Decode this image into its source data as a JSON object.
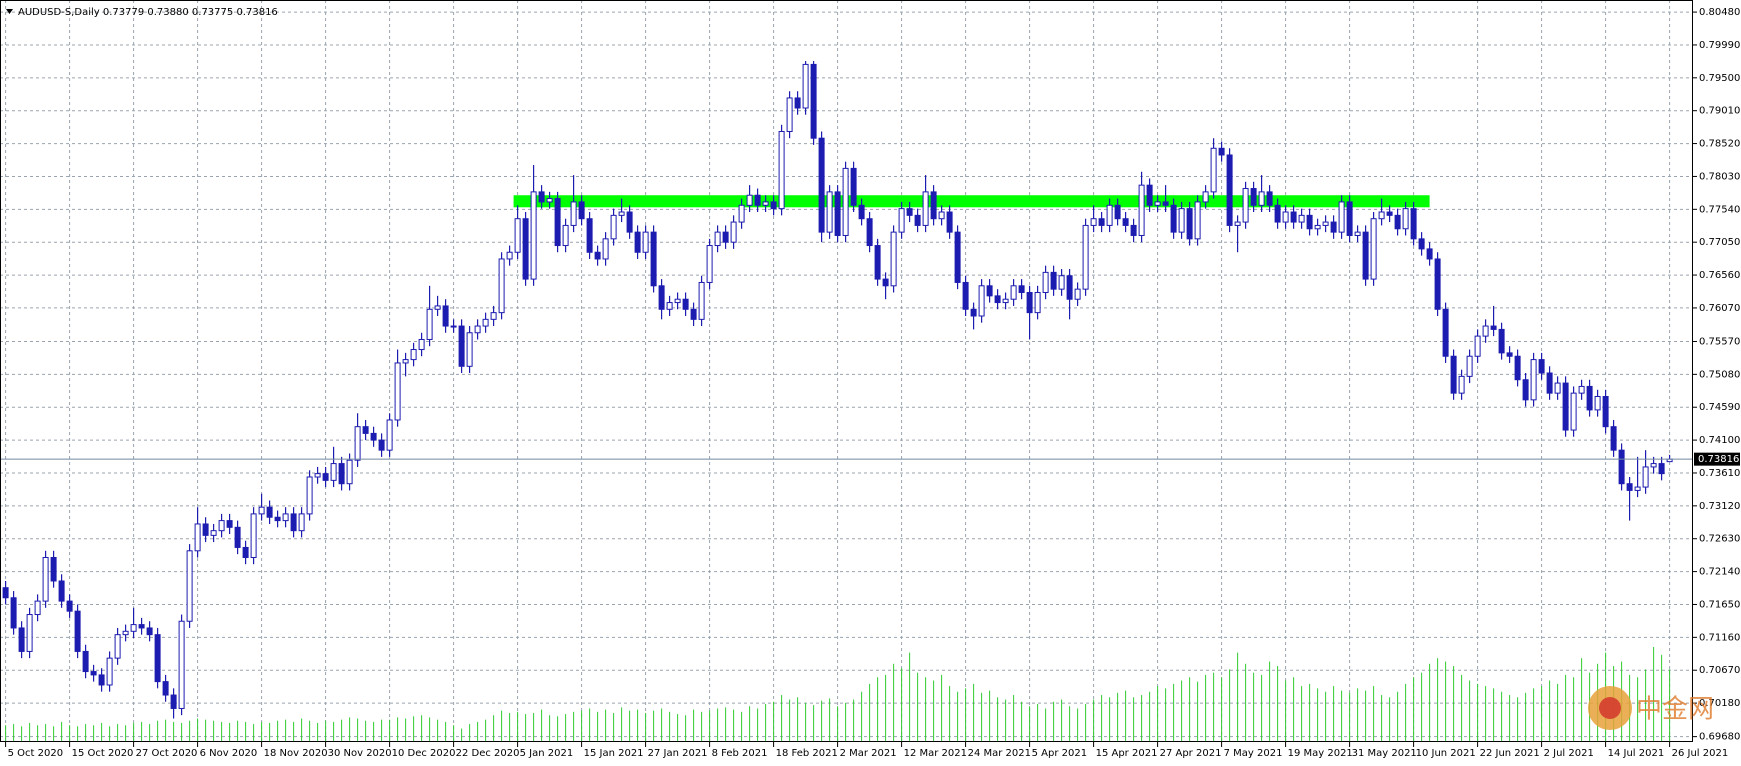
{
  "chart_data": {
    "type": "candlestick",
    "header": "AUDUSD-S,Daily  0.73779 0.73880 0.73775 0.73816",
    "color": "#1c1cb0",
    "up_fill": "#ffffff",
    "volume_color": "#32cd32",
    "zone_color": "#00ff00",
    "grid": true,
    "ylim": [
      0.696,
      0.8066
    ],
    "yticks": [
      {
        "value": 0.8048,
        "label": "0.80480"
      },
      {
        "value": 0.7999,
        "label": "0.79990"
      },
      {
        "value": 0.795,
        "label": "0.79500"
      },
      {
        "value": 0.7901,
        "label": "0.79010"
      },
      {
        "value": 0.7852,
        "label": "0.78520"
      },
      {
        "value": 0.7803,
        "label": "0.78030"
      },
      {
        "value": 0.7754,
        "label": "0.77540"
      },
      {
        "value": 0.7705,
        "label": "0.77050"
      },
      {
        "value": 0.7656,
        "label": "0.76560"
      },
      {
        "value": 0.7607,
        "label": "0.76070"
      },
      {
        "value": 0.7557,
        "label": "0.75570"
      },
      {
        "value": 0.7508,
        "label": "0.75080"
      },
      {
        "value": 0.7459,
        "label": "0.74590"
      },
      {
        "value": 0.741,
        "label": "0.74100"
      },
      {
        "value": 0.7361,
        "label": "0.73610"
      },
      {
        "value": 0.7312,
        "label": "0.73120"
      },
      {
        "value": 0.7263,
        "label": "0.72630"
      },
      {
        "value": 0.7214,
        "label": "0.72140"
      },
      {
        "value": 0.7165,
        "label": "0.71650"
      },
      {
        "value": 0.7116,
        "label": "0.71160"
      },
      {
        "value": 0.7067,
        "label": "0.70670"
      },
      {
        "value": 0.7018,
        "label": "0.70180"
      },
      {
        "value": 0.6968,
        "label": "0.69680"
      }
    ],
    "bid": {
      "value": 0.73816,
      "label": "0.73816"
    },
    "zone": [
      0.7757,
      0.7775
    ],
    "categories": [
      "5 Oct 2020",
      null,
      null,
      null,
      null,
      null,
      null,
      null,
      "15 Oct 2020",
      null,
      null,
      null,
      null,
      null,
      null,
      null,
      "27 Oct 2020",
      null,
      null,
      null,
      null,
      null,
      null,
      null,
      "6 Nov 2020",
      null,
      null,
      null,
      null,
      null,
      null,
      null,
      "18 Nov 2020",
      null,
      null,
      null,
      null,
      null,
      null,
      null,
      "30 Nov 2020",
      null,
      null,
      null,
      null,
      null,
      null,
      null,
      "10 Dec 2020",
      null,
      null,
      null,
      null,
      null,
      null,
      null,
      "22 Dec 2020",
      null,
      null,
      null,
      null,
      null,
      null,
      null,
      "5 Jan 2021",
      null,
      null,
      null,
      null,
      null,
      null,
      null,
      "15 Jan 2021",
      null,
      null,
      null,
      null,
      null,
      null,
      null,
      "27 Jan 2021",
      null,
      null,
      null,
      null,
      null,
      null,
      null,
      "8 Feb 2021",
      null,
      null,
      null,
      null,
      null,
      null,
      null,
      "18 Feb 2021",
      null,
      null,
      null,
      null,
      null,
      null,
      null,
      "2 Mar 2021",
      null,
      null,
      null,
      null,
      null,
      null,
      null,
      "12 Mar 2021",
      null,
      null,
      null,
      null,
      null,
      null,
      null,
      "24 Mar 2021",
      null,
      null,
      null,
      null,
      null,
      null,
      null,
      "5 Apr 2021",
      null,
      null,
      null,
      null,
      null,
      null,
      null,
      "15 Apr 2021",
      null,
      null,
      null,
      null,
      null,
      null,
      null,
      "27 Apr 2021",
      null,
      null,
      null,
      null,
      null,
      null,
      null,
      "7 May 2021",
      null,
      null,
      null,
      null,
      null,
      null,
      null,
      "19 May 2021",
      null,
      null,
      null,
      null,
      null,
      null,
      null,
      "31 May 2021",
      null,
      null,
      null,
      null,
      null,
      null,
      null,
      "10 Jun 2021",
      null,
      null,
      null,
      null,
      null,
      null,
      null,
      "22 Jun 2021",
      null,
      null,
      null,
      null,
      null,
      null,
      null,
      "2 Jul 2021",
      null,
      null,
      null,
      null,
      null,
      null,
      null,
      "14 Jul 2021",
      null,
      null,
      null,
      null,
      null,
      null,
      null,
      "26 Jul 2021"
    ],
    "open": [
      0.719,
      0.7175,
      0.713,
      0.7095,
      0.715,
      0.717,
      0.7235,
      0.72,
      0.717,
      0.7155,
      0.7095,
      0.7065,
      0.706,
      0.7045,
      0.7085,
      0.712,
      0.7125,
      0.7135,
      0.713,
      0.712,
      0.705,
      0.703,
      0.701,
      0.714,
      0.7245,
      0.7285,
      0.7268,
      0.7275,
      0.729,
      0.728,
      0.725,
      0.7235,
      0.73,
      0.731,
      0.7295,
      0.729,
      0.73,
      0.7275,
      0.73,
      0.7355,
      0.736,
      0.735,
      0.7375,
      0.7345,
      0.738,
      0.743,
      0.742,
      0.741,
      0.7395,
      0.744,
      0.7525,
      0.753,
      0.7545,
      0.756,
      0.7605,
      0.761,
      0.758,
      0.758,
      0.752,
      0.757,
      0.758,
      0.759,
      0.76,
      0.768,
      0.769,
      0.774,
      0.765,
      0.778,
      0.7765,
      0.777,
      0.77,
      0.773,
      0.7765,
      0.774,
      0.769,
      0.768,
      0.771,
      0.7745,
      0.775,
      0.772,
      0.769,
      0.772,
      0.764,
      0.7605,
      0.7615,
      0.762,
      0.7605,
      0.759,
      0.7645,
      0.77,
      0.772,
      0.7705,
      0.7735,
      0.776,
      0.7775,
      0.776,
      0.7765,
      0.7755,
      0.787,
      0.792,
      0.7905,
      0.797,
      0.786,
      0.772,
      0.778,
      0.7715,
      0.7815,
      0.776,
      0.774,
      0.77,
      0.765,
      0.764,
      0.772,
      0.7755,
      0.7745,
      0.773,
      0.778,
      0.774,
      0.775,
      0.772,
      0.7645,
      0.7605,
      0.7595,
      0.764,
      0.7625,
      0.7615,
      0.762,
      0.764,
      0.763,
      0.76,
      0.763,
      0.766,
      0.7635,
      0.7655,
      0.762,
      0.7635,
      0.773,
      0.774,
      0.773,
      0.776,
      0.774,
      0.773,
      0.7715,
      0.779,
      0.776,
      0.7765,
      0.776,
      0.772,
      0.7755,
      0.771,
      0.7765,
      0.778,
      0.7845,
      0.7835,
      0.773,
      0.7735,
      0.7785,
      0.776,
      0.778,
      0.776,
      0.7735,
      0.775,
      0.7735,
      0.7745,
      0.7725,
      0.773,
      0.7735,
      0.772,
      0.7765,
      0.7715,
      0.772,
      0.765,
      0.774,
      0.775,
      0.7745,
      0.7725,
      0.7755,
      0.771,
      0.7695,
      0.768,
      0.7605,
      0.7535,
      0.748,
      0.7505,
      0.7535,
      0.7565,
      0.758,
      0.7575,
      0.754,
      0.7535,
      0.75,
      0.747,
      0.753,
      0.751,
      0.748,
      0.7495,
      0.7425,
      0.748,
      0.749,
      0.7455,
      0.7475,
      0.743,
      0.7395,
      0.7345,
      0.7335,
      0.734,
      0.737,
      0.7375,
      0.73779
    ],
    "high": [
      0.72,
      0.7185,
      0.714,
      0.716,
      0.718,
      0.7245,
      0.7245,
      0.721,
      0.718,
      0.7165,
      0.7105,
      0.7075,
      0.707,
      0.7095,
      0.713,
      0.7135,
      0.716,
      0.7145,
      0.714,
      0.713,
      0.706,
      0.704,
      0.715,
      0.7255,
      0.731,
      0.7295,
      0.7285,
      0.73,
      0.73,
      0.729,
      0.726,
      0.731,
      0.733,
      0.732,
      0.7305,
      0.731,
      0.731,
      0.731,
      0.7365,
      0.737,
      0.737,
      0.74,
      0.7385,
      0.739,
      0.745,
      0.744,
      0.743,
      0.742,
      0.745,
      0.7545,
      0.754,
      0.7555,
      0.757,
      0.764,
      0.7625,
      0.762,
      0.759,
      0.759,
      0.758,
      0.759,
      0.76,
      0.761,
      0.769,
      0.77,
      0.776,
      0.775,
      0.782,
      0.779,
      0.778,
      0.778,
      0.774,
      0.7805,
      0.7775,
      0.775,
      0.77,
      0.772,
      0.7755,
      0.777,
      0.776,
      0.773,
      0.773,
      0.773,
      0.765,
      0.7625,
      0.763,
      0.763,
      0.7615,
      0.7655,
      0.771,
      0.773,
      0.773,
      0.7745,
      0.777,
      0.779,
      0.7785,
      0.7775,
      0.7775,
      0.788,
      0.793,
      0.793,
      0.7975,
      0.7975,
      0.787,
      0.779,
      0.779,
      0.7825,
      0.7825,
      0.777,
      0.775,
      0.771,
      0.766,
      0.773,
      0.7765,
      0.7765,
      0.7755,
      0.7805,
      0.779,
      0.776,
      0.776,
      0.773,
      0.7655,
      0.7615,
      0.765,
      0.765,
      0.7635,
      0.763,
      0.765,
      0.765,
      0.764,
      0.764,
      0.767,
      0.767,
      0.7665,
      0.7665,
      0.7645,
      0.774,
      0.776,
      0.775,
      0.777,
      0.777,
      0.775,
      0.774,
      0.781,
      0.78,
      0.7775,
      0.779,
      0.777,
      0.7765,
      0.7765,
      0.7775,
      0.779,
      0.786,
      0.7855,
      0.7845,
      0.7745,
      0.7795,
      0.7795,
      0.7805,
      0.779,
      0.777,
      0.776,
      0.776,
      0.7755,
      0.7755,
      0.774,
      0.7745,
      0.7745,
      0.7775,
      0.7775,
      0.773,
      0.773,
      0.775,
      0.777,
      0.776,
      0.7755,
      0.7765,
      0.7765,
      0.772,
      0.7705,
      0.769,
      0.7615,
      0.7545,
      0.7515,
      0.7545,
      0.7575,
      0.759,
      0.761,
      0.7585,
      0.755,
      0.7545,
      0.751,
      0.754,
      0.754,
      0.752,
      0.7505,
      0.7505,
      0.749,
      0.75,
      0.75,
      0.7485,
      0.7485,
      0.744,
      0.7405,
      0.7355,
      0.7385,
      0.7395,
      0.7385,
      0.7385,
      0.7388
    ],
    "low": [
      0.7165,
      0.712,
      0.7085,
      0.7085,
      0.714,
      0.716,
      0.719,
      0.716,
      0.7145,
      0.7085,
      0.7055,
      0.705,
      0.7035,
      0.7035,
      0.7075,
      0.711,
      0.7115,
      0.712,
      0.711,
      0.704,
      0.702,
      0.6995,
      0.7,
      0.713,
      0.7235,
      0.7258,
      0.7258,
      0.7265,
      0.727,
      0.724,
      0.7225,
      0.7225,
      0.729,
      0.7285,
      0.728,
      0.728,
      0.7265,
      0.7265,
      0.729,
      0.7345,
      0.734,
      0.734,
      0.7335,
      0.7335,
      0.737,
      0.741,
      0.74,
      0.7385,
      0.7385,
      0.743,
      0.7505,
      0.752,
      0.7535,
      0.755,
      0.7595,
      0.757,
      0.757,
      0.751,
      0.751,
      0.756,
      0.757,
      0.758,
      0.759,
      0.767,
      0.768,
      0.764,
      0.764,
      0.7755,
      0.7755,
      0.769,
      0.769,
      0.772,
      0.773,
      0.768,
      0.767,
      0.767,
      0.77,
      0.7735,
      0.771,
      0.768,
      0.768,
      0.763,
      0.759,
      0.7595,
      0.7605,
      0.7595,
      0.758,
      0.758,
      0.7635,
      0.769,
      0.7695,
      0.7695,
      0.7725,
      0.775,
      0.775,
      0.775,
      0.7745,
      0.7745,
      0.786,
      0.7895,
      0.7895,
      0.785,
      0.7705,
      0.771,
      0.7705,
      0.7705,
      0.775,
      0.773,
      0.769,
      0.764,
      0.762,
      0.763,
      0.771,
      0.7735,
      0.772,
      0.772,
      0.773,
      0.773,
      0.771,
      0.7635,
      0.7595,
      0.7575,
      0.7585,
      0.7615,
      0.7605,
      0.7605,
      0.761,
      0.762,
      0.756,
      0.759,
      0.762,
      0.7625,
      0.7625,
      0.759,
      0.761,
      0.7625,
      0.772,
      0.772,
      0.772,
      0.773,
      0.772,
      0.7705,
      0.7705,
      0.775,
      0.775,
      0.775,
      0.771,
      0.771,
      0.77,
      0.77,
      0.7755,
      0.777,
      0.7825,
      0.772,
      0.769,
      0.7725,
      0.775,
      0.775,
      0.775,
      0.7725,
      0.7725,
      0.7725,
      0.7725,
      0.7715,
      0.7715,
      0.772,
      0.771,
      0.771,
      0.7705,
      0.7705,
      0.764,
      0.764,
      0.773,
      0.7735,
      0.7715,
      0.7715,
      0.77,
      0.7685,
      0.767,
      0.7595,
      0.7525,
      0.747,
      0.747,
      0.7495,
      0.7525,
      0.7555,
      0.7565,
      0.753,
      0.7525,
      0.749,
      0.746,
      0.746,
      0.75,
      0.747,
      0.747,
      0.7415,
      0.7415,
      0.747,
      0.7445,
      0.7445,
      0.742,
      0.7385,
      0.7335,
      0.729,
      0.7325,
      0.733,
      0.736,
      0.735,
      0.73775
    ],
    "close": [
      0.7175,
      0.713,
      0.7095,
      0.715,
      0.717,
      0.7235,
      0.72,
      0.717,
      0.7155,
      0.7095,
      0.7065,
      0.706,
      0.7045,
      0.7085,
      0.712,
      0.7125,
      0.7135,
      0.713,
      0.712,
      0.705,
      0.703,
      0.701,
      0.714,
      0.7245,
      0.7285,
      0.7268,
      0.7275,
      0.729,
      0.728,
      0.725,
      0.7235,
      0.73,
      0.731,
      0.7295,
      0.729,
      0.73,
      0.7275,
      0.73,
      0.7355,
      0.736,
      0.735,
      0.7375,
      0.7345,
      0.738,
      0.743,
      0.742,
      0.741,
      0.7395,
      0.744,
      0.7525,
      0.753,
      0.7545,
      0.756,
      0.7605,
      0.761,
      0.758,
      0.758,
      0.752,
      0.757,
      0.758,
      0.759,
      0.76,
      0.768,
      0.769,
      0.774,
      0.765,
      0.778,
      0.7765,
      0.777,
      0.77,
      0.773,
      0.7765,
      0.774,
      0.769,
      0.768,
      0.771,
      0.7745,
      0.775,
      0.772,
      0.769,
      0.772,
      0.764,
      0.7605,
      0.7615,
      0.762,
      0.7605,
      0.759,
      0.7645,
      0.77,
      0.772,
      0.7705,
      0.7735,
      0.776,
      0.7775,
      0.776,
      0.7765,
      0.7755,
      0.787,
      0.792,
      0.7905,
      0.797,
      0.786,
      0.772,
      0.778,
      0.7715,
      0.7815,
      0.776,
      0.774,
      0.77,
      0.765,
      0.764,
      0.772,
      0.7755,
      0.7745,
      0.773,
      0.778,
      0.774,
      0.775,
      0.772,
      0.7645,
      0.7605,
      0.7595,
      0.764,
      0.7625,
      0.7615,
      0.762,
      0.764,
      0.763,
      0.76,
      0.763,
      0.766,
      0.7635,
      0.7655,
      0.762,
      0.7635,
      0.773,
      0.774,
      0.773,
      0.776,
      0.774,
      0.773,
      0.7715,
      0.779,
      0.776,
      0.7765,
      0.776,
      0.772,
      0.7755,
      0.771,
      0.7765,
      0.778,
      0.7845,
      0.7835,
      0.773,
      0.7735,
      0.7785,
      0.776,
      0.778,
      0.776,
      0.7735,
      0.775,
      0.7735,
      0.7745,
      0.7725,
      0.773,
      0.7735,
      0.772,
      0.7765,
      0.7715,
      0.772,
      0.765,
      0.774,
      0.775,
      0.7745,
      0.7725,
      0.7755,
      0.771,
      0.7695,
      0.768,
      0.7605,
      0.7535,
      0.748,
      0.7505,
      0.7535,
      0.7565,
      0.758,
      0.7575,
      0.754,
      0.7535,
      0.75,
      0.747,
      0.753,
      0.751,
      0.748,
      0.7495,
      0.7425,
      0.748,
      0.749,
      0.7455,
      0.7475,
      0.743,
      0.7395,
      0.7345,
      0.7335,
      0.734,
      0.737,
      0.7375,
      0.736,
      0.73816
    ],
    "volume": [
      15,
      16,
      14,
      17,
      15,
      16,
      14,
      18,
      15,
      14,
      16,
      15,
      17,
      14,
      16,
      15,
      17,
      18,
      16,
      19,
      20,
      18,
      17,
      19,
      21,
      20,
      19,
      18,
      17,
      19,
      18,
      16,
      18,
      17,
      19,
      20,
      18,
      21,
      19,
      17,
      19,
      18,
      20,
      22,
      21,
      19,
      18,
      20,
      20,
      22,
      21,
      23,
      24,
      22,
      20,
      18,
      15,
      12,
      16,
      18,
      20,
      24,
      28,
      26,
      27,
      25,
      26,
      29,
      24,
      23,
      25,
      27,
      28,
      30,
      27,
      29,
      26,
      31,
      28,
      29,
      26,
      28,
      30,
      27,
      25,
      24,
      29,
      27,
      28,
      30,
      31,
      29,
      27,
      32,
      30,
      34,
      36,
      42,
      38,
      40,
      35,
      33,
      37,
      39,
      32,
      35,
      38,
      45,
      52,
      58,
      60,
      70,
      66,
      80,
      62,
      58,
      55,
      60,
      50,
      45,
      48,
      52,
      44,
      46,
      40,
      38,
      42,
      36,
      32,
      34,
      30,
      36,
      38,
      32,
      30,
      34,
      38,
      42,
      40,
      44,
      46,
      40,
      42,
      45,
      50,
      48,
      52,
      55,
      58,
      54,
      60,
      62,
      58,
      65,
      80,
      70,
      62,
      60,
      72,
      68,
      55,
      58,
      50,
      52,
      48,
      45,
      50,
      46,
      44,
      48,
      46,
      50,
      42,
      40,
      45,
      52,
      58,
      62,
      70,
      75,
      72,
      68,
      60,
      55,
      52,
      50,
      48,
      45,
      42,
      40,
      44,
      48,
      50,
      55,
      52,
      60,
      58,
      75,
      62,
      70,
      80,
      68,
      72,
      60,
      58,
      65,
      85,
      78,
      65
    ]
  },
  "watermark": "中金网"
}
